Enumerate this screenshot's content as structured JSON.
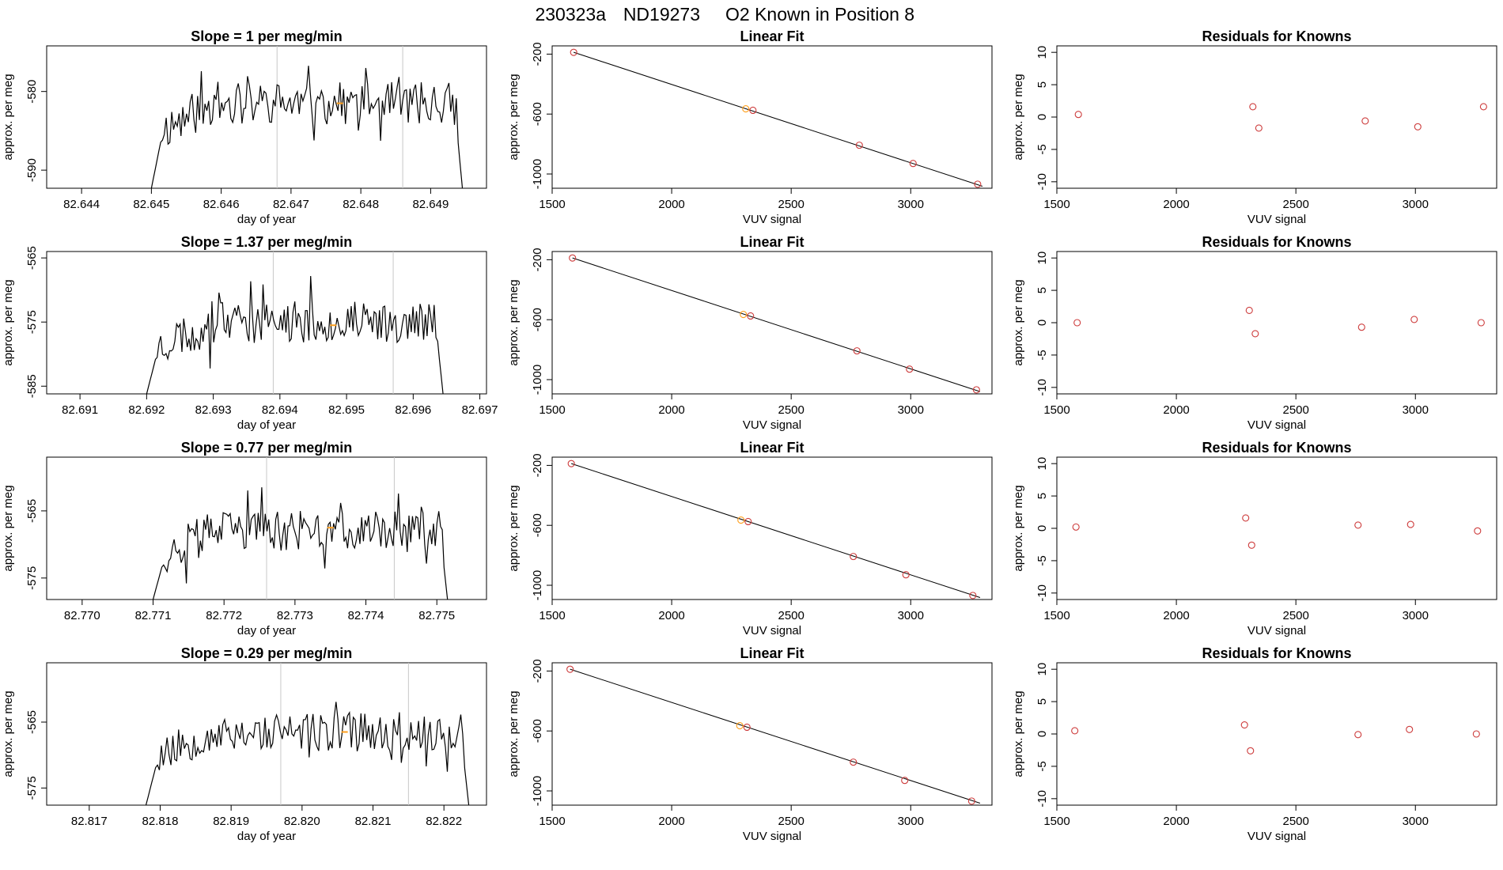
{
  "header": {
    "run_id": "230323a",
    "tank_id": "ND19273",
    "description": "O2 Known in Position  8"
  },
  "colors": {
    "trace": "#000000",
    "point": "#cd3b3b",
    "highlight": "#ff9f1c",
    "guide": "#c8c8c8"
  },
  "chart_data": [
    {
      "type": "line",
      "row": 0,
      "title": "Slope =  1  per meg/min",
      "xlabel": "day of year",
      "ylabel": "approx. per meg",
      "xlim": [
        82.6435,
        82.6498
      ],
      "ylim": [
        -592.3,
        -574.2
      ],
      "xticks": [
        "82.644",
        "82.645",
        "82.646",
        "82.647",
        "82.648",
        "82.649"
      ],
      "yticks": [
        "-590",
        "-580"
      ],
      "start": 82.645,
      "end": 82.6495,
      "vlines": [
        82.6468,
        82.6486
      ],
      "marker": [
        82.6477,
        -581.5
      ],
      "base": -581.5,
      "amp": 2.2,
      "seed": 11
    },
    {
      "type": "scatter",
      "row": 0,
      "title": "Linear Fit",
      "xlabel": "VUV signal",
      "ylabel": "approx. per meg",
      "xlim": [
        1500,
        3340
      ],
      "ylim": [
        -1095,
        -145
      ],
      "xticks": [
        "1500",
        "2000",
        "2500",
        "3000"
      ],
      "yticks": [
        "-200",
        "-600",
        "-1000"
      ],
      "x": [
        1590,
        2310,
        2340,
        2785,
        3010,
        3280
      ],
      "y": [
        -188,
        -565,
        -575,
        -808,
        -930,
        -1068
      ],
      "highlight_index": 1,
      "fit": [
        [
          1590,
          -188
        ],
        [
          3300,
          -1082
        ]
      ]
    },
    {
      "type": "scatter",
      "row": 0,
      "title": "Residuals for Knowns",
      "xlabel": "VUV signal",
      "ylabel": "approx. per meg",
      "xlim": [
        1500,
        3340
      ],
      "ylim": [
        -11,
        11
      ],
      "xticks": [
        "1500",
        "2000",
        "2500",
        "3000"
      ],
      "yticks": [
        "10",
        "5",
        "0",
        "-5",
        "-10"
      ],
      "x": [
        1590,
        2320,
        2345,
        2790,
        3010,
        3285
      ],
      "y": [
        0.4,
        1.6,
        -1.7,
        -0.6,
        -1.5,
        1.6
      ]
    },
    {
      "type": "line",
      "row": 1,
      "title": "Slope =  1.37  per meg/min",
      "xlabel": "day of year",
      "ylabel": "approx. per meg",
      "xlim": [
        82.6905,
        82.6971
      ],
      "ylim": [
        -586.2,
        -564.0
      ],
      "xticks": [
        "82.691",
        "82.692",
        "82.693",
        "82.694",
        "82.695",
        "82.696",
        "82.697"
      ],
      "yticks": [
        "-565",
        "-575",
        "-585"
      ],
      "start": 82.692,
      "end": 82.6965,
      "vlines": [
        82.6939,
        82.6957
      ],
      "marker": [
        82.6948,
        -575.5
      ],
      "base": -575.0,
      "amp": 2.6,
      "seed": 23
    },
    {
      "type": "scatter",
      "row": 1,
      "title": "Linear Fit",
      "xlabel": "VUV signal",
      "ylabel": "approx. per meg",
      "xlim": [
        1500,
        3340
      ],
      "ylim": [
        -1095,
        -145
      ],
      "xticks": [
        "1500",
        "2000",
        "2500",
        "3000"
      ],
      "yticks": [
        "-200",
        "-600",
        "-1000"
      ],
      "x": [
        1585,
        2300,
        2330,
        2775,
        2995,
        3275
      ],
      "y": [
        -188,
        -565,
        -575,
        -808,
        -930,
        -1068
      ],
      "highlight_index": 1,
      "fit": [
        [
          1585,
          -188
        ],
        [
          3290,
          -1080
        ]
      ]
    },
    {
      "type": "scatter",
      "row": 1,
      "title": "Residuals for Knowns",
      "xlabel": "VUV signal",
      "ylabel": "approx. per meg",
      "xlim": [
        1500,
        3340
      ],
      "ylim": [
        -11,
        11
      ],
      "xticks": [
        "1500",
        "2000",
        "2500",
        "3000"
      ],
      "yticks": [
        "10",
        "5",
        "0",
        "-5",
        "-10"
      ],
      "x": [
        1585,
        2305,
        2330,
        2775,
        2995,
        3275
      ],
      "y": [
        0.0,
        1.9,
        -1.7,
        -0.7,
        0.5,
        0.0
      ]
    },
    {
      "type": "line",
      "row": 2,
      "title": "Slope =  0.77  per meg/min",
      "xlabel": "day of year",
      "ylabel": "approx. per meg",
      "xlim": [
        82.7695,
        82.7757
      ],
      "ylim": [
        -578.2,
        -557.0
      ],
      "xticks": [
        "82.770",
        "82.771",
        "82.772",
        "82.773",
        "82.774",
        "82.775"
      ],
      "yticks": [
        "-565",
        "-575"
      ],
      "start": 82.771,
      "end": 82.7752,
      "vlines": [
        82.7726,
        82.7744
      ],
      "marker": [
        82.7735,
        -567.5
      ],
      "base": -568.0,
      "amp": 2.4,
      "seed": 37
    },
    {
      "type": "scatter",
      "row": 2,
      "title": "Linear Fit",
      "xlabel": "VUV signal",
      "ylabel": "approx. per meg",
      "xlim": [
        1500,
        3340
      ],
      "ylim": [
        -1095,
        -145
      ],
      "xticks": [
        "1500",
        "2000",
        "2500",
        "3000"
      ],
      "yticks": [
        "-200",
        "-600",
        "-1000"
      ],
      "x": [
        1580,
        2290,
        2320,
        2760,
        2980,
        3260
      ],
      "y": [
        -188,
        -565,
        -575,
        -808,
        -930,
        -1068
      ],
      "highlight_index": 1,
      "fit": [
        [
          1580,
          -188
        ],
        [
          3290,
          -1082
        ]
      ]
    },
    {
      "type": "scatter",
      "row": 2,
      "title": "Residuals for Knowns",
      "xlabel": "VUV signal",
      "ylabel": "approx. per meg",
      "xlim": [
        1500,
        3340
      ],
      "ylim": [
        -11,
        11
      ],
      "xticks": [
        "1500",
        "2000",
        "2500",
        "3000"
      ],
      "yticks": [
        "10",
        "5",
        "0",
        "-5",
        "-10"
      ],
      "x": [
        1580,
        2290,
        2315,
        2760,
        2980,
        3260
      ],
      "y": [
        0.2,
        1.6,
        -2.6,
        0.5,
        0.6,
        -0.4
      ]
    },
    {
      "type": "line",
      "row": 3,
      "title": "Slope =  0.29  per meg/min",
      "xlabel": "day of year",
      "ylabel": "approx. per meg",
      "xlim": [
        82.8164,
        82.8226
      ],
      "ylim": [
        -577.6,
        -556.0
      ],
      "xticks": [
        "82.817",
        "82.818",
        "82.819",
        "82.820",
        "82.821",
        "82.822"
      ],
      "yticks": [
        "-565",
        "-575"
      ],
      "start": 82.8178,
      "end": 82.8224,
      "vlines": [
        82.8197,
        82.8215
      ],
      "marker": [
        82.8206,
        -566.5
      ],
      "base": -566.5,
      "amp": 2.4,
      "seed": 53
    },
    {
      "type": "scatter",
      "row": 3,
      "title": "Linear Fit",
      "xlabel": "VUV signal",
      "ylabel": "approx. per meg",
      "xlim": [
        1500,
        3340
      ],
      "ylim": [
        -1095,
        -145
      ],
      "xticks": [
        "1500",
        "2000",
        "2500",
        "3000"
      ],
      "yticks": [
        "-200",
        "-600",
        "-1000"
      ],
      "x": [
        1575,
        2285,
        2315,
        2760,
        2975,
        3255
      ],
      "y": [
        -188,
        -565,
        -575,
        -808,
        -930,
        -1068
      ],
      "highlight_index": 1,
      "fit": [
        [
          1575,
          -188
        ],
        [
          3290,
          -1082
        ]
      ]
    },
    {
      "type": "scatter",
      "row": 3,
      "title": "Residuals for Knowns",
      "xlabel": "VUV signal",
      "ylabel": "approx. per meg",
      "xlim": [
        1500,
        3340
      ],
      "ylim": [
        -11,
        11
      ],
      "xticks": [
        "1500",
        "2000",
        "2500",
        "3000"
      ],
      "yticks": [
        "10",
        "5",
        "0",
        "-5",
        "-10"
      ],
      "x": [
        1575,
        2285,
        2310,
        2760,
        2975,
        3255
      ],
      "y": [
        0.5,
        1.4,
        -2.6,
        -0.1,
        0.7,
        0.0
      ]
    }
  ]
}
